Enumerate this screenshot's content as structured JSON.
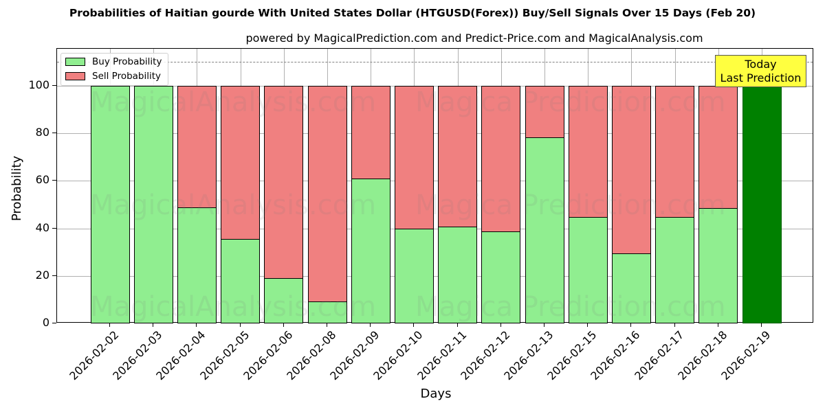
{
  "chart_data": {
    "type": "bar",
    "stacked": true,
    "title": "Probabilities of Haitian gourde With United States Dollar (HTGUSD(Forex)) Buy/Sell Signals Over 15 Days (Feb 20)",
    "subtitle": "powered by MagicalPrediction.com and Predict-Price.com and MagicalAnalysis.com",
    "xlabel": "Days",
    "ylabel": "Probability",
    "ylim": [
      0,
      115
    ],
    "yticks": [
      0,
      20,
      40,
      60,
      80,
      100
    ],
    "grid": true,
    "legend_position": "upper left",
    "categories": [
      "2026-02-02",
      "2026-02-03",
      "2026-02-04",
      "2026-02-05",
      "2026-02-06",
      "2026-02-08",
      "2026-02-09",
      "2026-02-10",
      "2026-02-11",
      "2026-02-12",
      "2026-02-13",
      "2026-02-15",
      "2026-02-16",
      "2026-02-17",
      "2026-02-18",
      "2026-02-19"
    ],
    "series": [
      {
        "name": "Buy Probability",
        "color": "#90ee90",
        "values": [
          100,
          100,
          49.1,
          35.8,
          19.1,
          9.5,
          61.0,
          39.9,
          40.8,
          39.0,
          78.6,
          44.8,
          29.5,
          44.8,
          48.8,
          100
        ]
      },
      {
        "name": "Sell Probability",
        "color": "#f08080",
        "values": [
          0,
          0,
          50.9,
          64.2,
          80.9,
          90.5,
          39.0,
          60.1,
          59.2,
          61.0,
          21.4,
          55.2,
          70.5,
          55.2,
          51.2,
          0
        ]
      }
    ],
    "highlight": {
      "category": "2026-02-19",
      "color": "#008000"
    },
    "reference_line": {
      "y": 110,
      "style": "dashed",
      "color": "#808080"
    },
    "annotations": [
      {
        "text": "Today\nLast Prediction",
        "line1": "Today",
        "line2": "Last Prediction",
        "background": "#ffff40"
      }
    ],
    "watermarks": [
      "MagicalAnalysis.com",
      "MagicalPrediction.com"
    ]
  }
}
